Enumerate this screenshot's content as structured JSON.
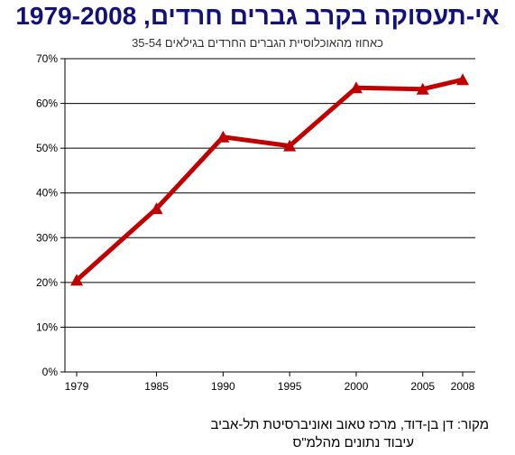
{
  "title": "אי-תעסוקה בקרב גברים חרדים, 1979-2008",
  "subtitle": "כאחוז מהאוכלוסיית הגברים החרדים בגילאים 35-54",
  "source_line1": "מקור:  דן בן-דוד, מרכז טאוב ואוניברסיטת תל-אביב",
  "source_line2": "עיבוד נתונים מהלמ\"ס",
  "colors": {
    "line": "#c00000",
    "title": "#12127a",
    "grid": "#000000"
  },
  "chart_data": {
    "type": "line",
    "title": "אי-תעסוקה בקרב גברים חרדים, 1979-2008",
    "subtitle": "כאחוז מהאוכלוסיית הגברים החרדים בגילאים 35-54",
    "xlabel": "",
    "ylabel": "",
    "x": [
      1979,
      1985,
      1990,
      1995,
      2000,
      2005,
      2008
    ],
    "xlim": [
      1979,
      2008
    ],
    "ylim": [
      0,
      70
    ],
    "yticks": [
      0,
      10,
      20,
      30,
      40,
      50,
      60,
      70
    ],
    "ytick_labels": [
      "0%",
      "10%",
      "20%",
      "30%",
      "40%",
      "50%",
      "60%",
      "70%"
    ],
    "xtick_labels": [
      "1979",
      "1985",
      "1990",
      "1995",
      "2000",
      "2005",
      "2008"
    ],
    "grid": true,
    "legend": "none",
    "marker": "triangle",
    "series": [
      {
        "values": [
          20.5,
          36.5,
          52.5,
          50.5,
          63.5,
          63.2,
          65.3
        ]
      }
    ]
  }
}
